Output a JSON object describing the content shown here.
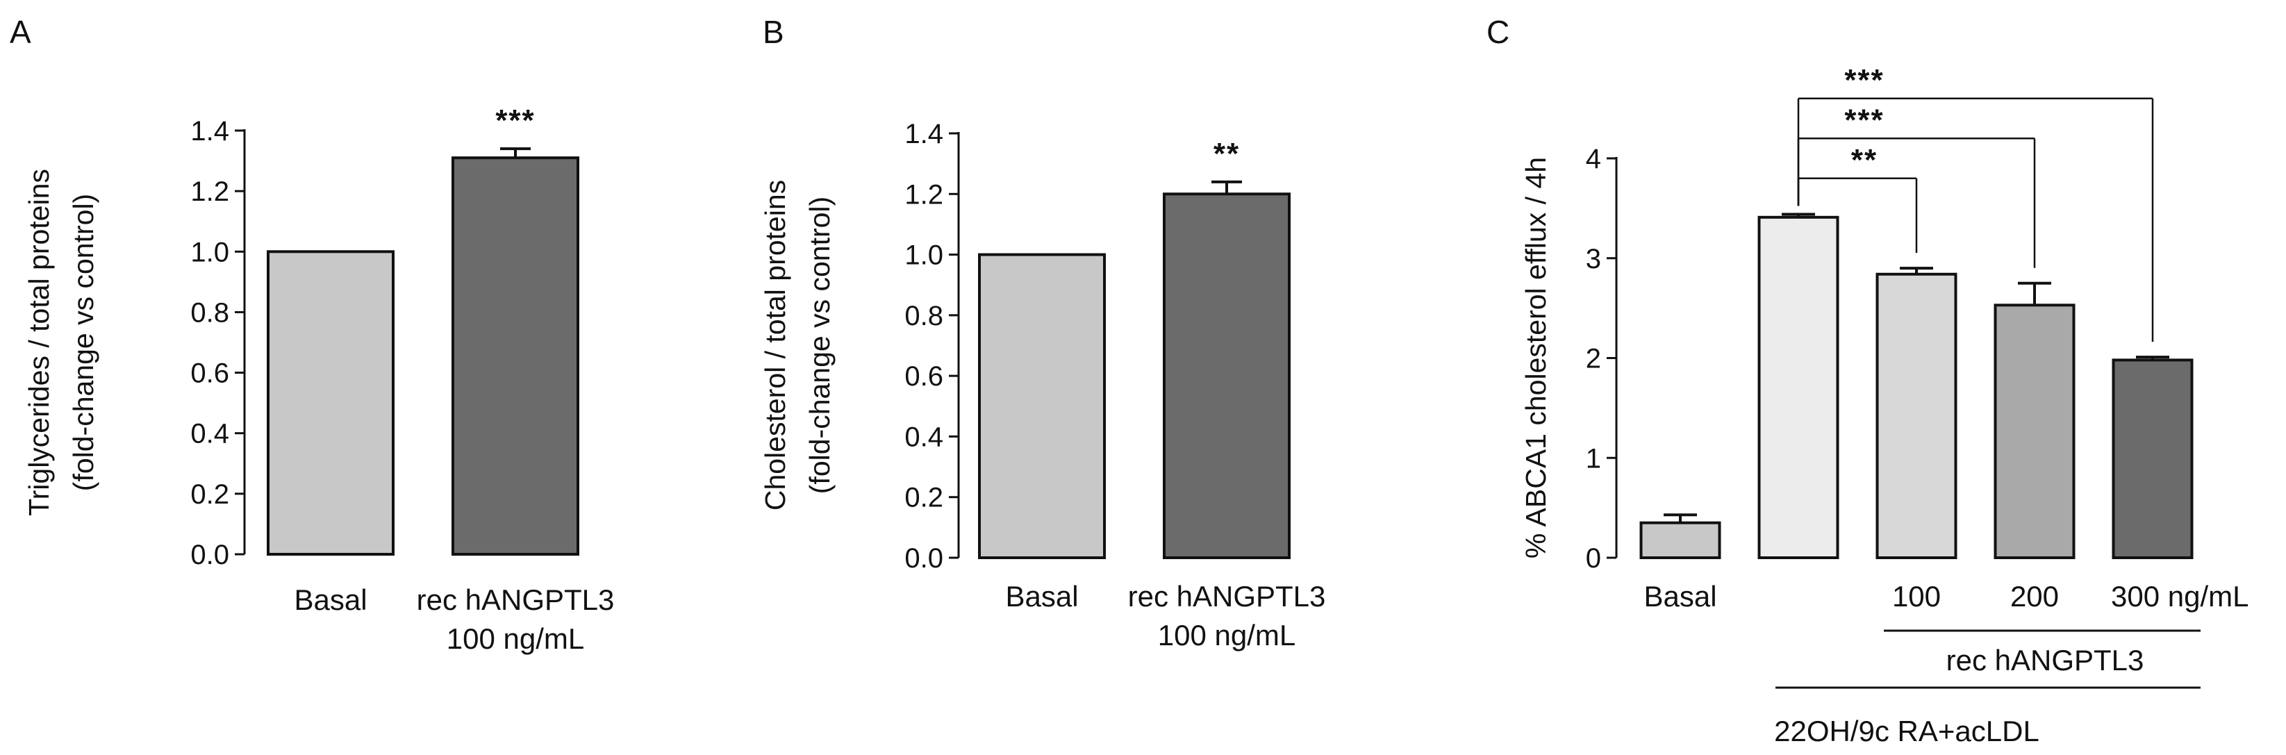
{
  "figure": {
    "panels": [
      "A",
      "B",
      "C"
    ]
  },
  "chart_data": [
    {
      "panel": "A",
      "type": "bar",
      "categories": [
        "Basal",
        "rec hANGPTL3 100 ng/mL"
      ],
      "category_lines": [
        [
          "Basal"
        ],
        [
          "rec hANGPTL3",
          "100 ng/mL"
        ]
      ],
      "values": [
        1.0,
        1.31
      ],
      "errors": [
        0,
        0.03
      ],
      "bar_colors": [
        "#c8c8c8",
        "#6b6b6b"
      ],
      "significance": [
        "",
        "***"
      ],
      "ylabel_lines": [
        "Triglycerides / total proteins",
        "(fold-change vs control)"
      ],
      "ylim": [
        0,
        1.4
      ],
      "yticks": [
        0,
        0.2,
        0.4,
        0.6,
        0.8,
        1.0,
        1.2,
        1.4
      ],
      "ytick_labels": [
        "0.0",
        "0.2",
        "0.4",
        "0.6",
        "0.8",
        "1.0",
        "1.2",
        "1.4"
      ]
    },
    {
      "panel": "B",
      "type": "bar",
      "categories": [
        "Basal",
        "rec hANGPTL3 100 ng/mL"
      ],
      "category_lines": [
        [
          "Basal"
        ],
        [
          "rec hANGPTL3",
          "100 ng/mL"
        ]
      ],
      "values": [
        1.0,
        1.2
      ],
      "errors": [
        0,
        0.04
      ],
      "bar_colors": [
        "#c8c8c8",
        "#6b6b6b"
      ],
      "significance": [
        "",
        "**"
      ],
      "ylabel_lines": [
        "Cholesterol / total proteins",
        "(fold-change vs control)"
      ],
      "ylim": [
        0,
        1.4
      ],
      "yticks": [
        0,
        0.2,
        0.4,
        0.6,
        0.8,
        1.0,
        1.2,
        1.4
      ],
      "ytick_labels": [
        "0.0",
        "0.2",
        "0.4",
        "0.6",
        "0.8",
        "1.0",
        "1.2",
        "1.4"
      ]
    },
    {
      "panel": "C",
      "type": "bar",
      "categories": [
        "Basal",
        "22OH/9c RA+acLDL",
        "100",
        "200",
        "300 ng/mL"
      ],
      "category_lines": [
        [
          "Basal"
        ],
        [
          ""
        ],
        [
          "100"
        ],
        [
          "200"
        ],
        [
          "300 ng/mL"
        ]
      ],
      "values": [
        0.35,
        3.41,
        2.84,
        2.53,
        1.98
      ],
      "errors": [
        0.08,
        0.03,
        0.06,
        0.22,
        0.03
      ],
      "bar_colors": [
        "#c8c8c8",
        "#ececec",
        "#d8d8d8",
        "#a9a9a9",
        "#6b6b6b"
      ],
      "ylabel_lines": [
        "% ABCA1 cholesterol efflux / 4h"
      ],
      "ylim": [
        0,
        4
      ],
      "yticks": [
        0,
        1,
        2,
        3,
        4
      ],
      "ytick_labels": [
        "0",
        "1",
        "2",
        "3",
        "4"
      ],
      "comparisons": [
        {
          "from": 1,
          "to": 2,
          "label": "**"
        },
        {
          "from": 1,
          "to": 3,
          "label": "***"
        },
        {
          "from": 1,
          "to": 4,
          "label": "***"
        }
      ],
      "group_labels": {
        "treatment": "rec hANGPTL3",
        "loading": "22OH/9c RA+acLDL"
      }
    }
  ]
}
